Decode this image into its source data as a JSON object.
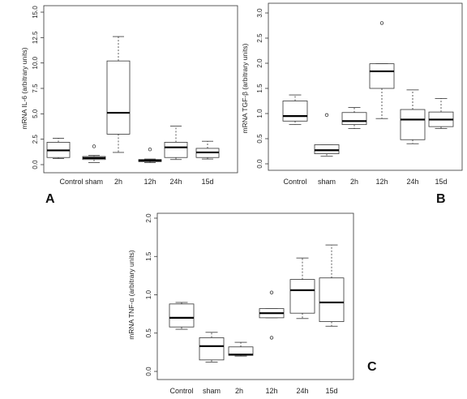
{
  "chart_data": [
    {
      "type": "boxplot",
      "panel_label": "A",
      "ylabel": "mRNA IL-6 (arbitrary units)",
      "ylim": [
        0,
        15
      ],
      "yticks": [
        "0.0",
        "2.5",
        "5.0",
        "7.5",
        "10.0",
        "12.5",
        "15.0"
      ],
      "categories": [
        "Control",
        "sham",
        "2h",
        "12h",
        "24h",
        "15d"
      ],
      "boxes": [
        {
          "whisker_low": 0.6,
          "q1": 0.7,
          "median": 1.4,
          "q3": 2.2,
          "whisker_high": 2.6,
          "outliers": []
        },
        {
          "whisker_low": 0.2,
          "q1": 0.5,
          "median": 0.65,
          "q3": 0.8,
          "whisker_high": 0.9,
          "outliers": [
            1.8
          ]
        },
        {
          "whisker_low": 1.2,
          "q1": 3.0,
          "median": 5.1,
          "q3": 10.2,
          "whisker_high": 12.6,
          "outliers": []
        },
        {
          "whisker_low": 0.2,
          "q1": 0.3,
          "median": 0.4,
          "q3": 0.5,
          "whisker_high": 0.55,
          "outliers": [
            1.5
          ]
        },
        {
          "whisker_low": 0.5,
          "q1": 0.7,
          "median": 1.7,
          "q3": 2.2,
          "whisker_high": 3.8,
          "outliers": []
        },
        {
          "whisker_low": 0.55,
          "q1": 0.7,
          "median": 1.2,
          "q3": 1.6,
          "whisker_high": 2.3,
          "outliers": []
        }
      ]
    },
    {
      "type": "boxplot",
      "panel_label": "B",
      "ylabel": "mRNA TGF-β (arbitrary units)",
      "ylim": [
        0,
        3
      ],
      "yticks": [
        "0.0",
        "0.5",
        "1.0",
        "1.5",
        "2.0",
        "2.5",
        "3.0"
      ],
      "categories": [
        "Control",
        "sham",
        "2h",
        "12h",
        "24h",
        "15d"
      ],
      "boxes": [
        {
          "whisker_low": 0.78,
          "q1": 0.85,
          "median": 0.95,
          "q3": 1.25,
          "whisker_high": 1.37,
          "outliers": []
        },
        {
          "whisker_low": 0.15,
          "q1": 0.2,
          "median": 0.27,
          "q3": 0.38,
          "whisker_high": 0.38,
          "outliers": [
            0.97
          ]
        },
        {
          "whisker_low": 0.7,
          "q1": 0.78,
          "median": 0.85,
          "q3": 1.02,
          "whisker_high": 1.12,
          "outliers": []
        },
        {
          "whisker_low": 0.9,
          "q1": 1.5,
          "median": 1.84,
          "q3": 1.99,
          "whisker_high": 1.99,
          "outliers": [
            2.8
          ]
        },
        {
          "whisker_low": 0.4,
          "q1": 0.48,
          "median": 0.88,
          "q3": 1.08,
          "whisker_high": 1.47,
          "outliers": []
        },
        {
          "whisker_low": 0.7,
          "q1": 0.74,
          "median": 0.88,
          "q3": 1.03,
          "whisker_high": 1.3,
          "outliers": []
        }
      ]
    },
    {
      "type": "boxplot",
      "panel_label": "C",
      "ylabel": "mRNA TNF-α (arbitrary units)",
      "ylim": [
        0,
        2
      ],
      "yticks": [
        "0.0",
        "0.5",
        "1.0",
        "1.5",
        "2.0"
      ],
      "categories": [
        "Control",
        "sham",
        "2h",
        "12h",
        "24h",
        "15d"
      ],
      "boxes": [
        {
          "whisker_low": 0.55,
          "q1": 0.58,
          "median": 0.7,
          "q3": 0.88,
          "whisker_high": 0.9,
          "outliers": []
        },
        {
          "whisker_low": 0.12,
          "q1": 0.15,
          "median": 0.33,
          "q3": 0.44,
          "whisker_high": 0.51,
          "outliers": []
        },
        {
          "whisker_low": 0.2,
          "q1": 0.21,
          "median": 0.22,
          "q3": 0.32,
          "whisker_high": 0.38,
          "outliers": []
        },
        {
          "whisker_low": 0.7,
          "q1": 0.7,
          "median": 0.76,
          "q3": 0.82,
          "whisker_high": 0.82,
          "outliers": [
            1.03,
            0.44
          ]
        },
        {
          "whisker_low": 0.69,
          "q1": 0.76,
          "median": 1.06,
          "q3": 1.2,
          "whisker_high": 1.48,
          "outliers": []
        },
        {
          "whisker_low": 0.59,
          "q1": 0.65,
          "median": 0.9,
          "q3": 1.22,
          "whisker_high": 1.65,
          "outliers": []
        }
      ]
    }
  ]
}
